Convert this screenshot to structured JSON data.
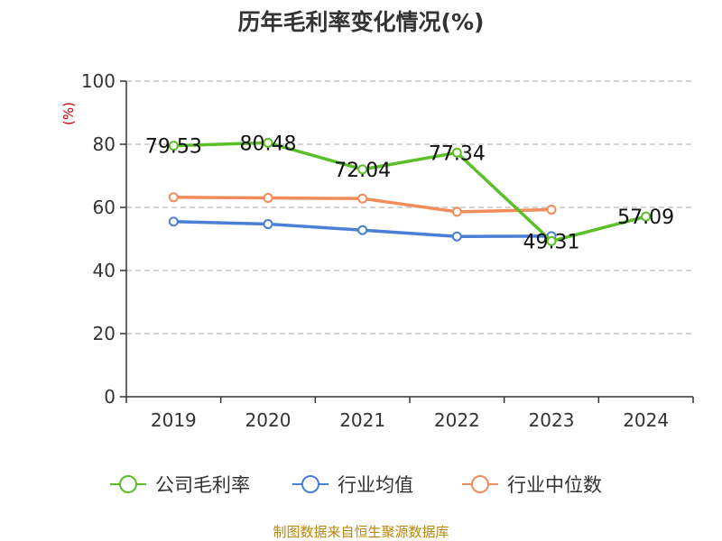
{
  "chart_data": {
    "type": "line",
    "title": "历年毛利率变化情况(%)",
    "ylabel": "(%)",
    "ylim": [
      0,
      100
    ],
    "y_ticks": [
      "0",
      "20",
      "40",
      "60",
      "80",
      "100"
    ],
    "categories": [
      "2019",
      "2020",
      "2021",
      "2022",
      "2023",
      "2024"
    ],
    "series": [
      {
        "name": "公司毛利率",
        "color": "#5cbf2a",
        "values": [
          79.53,
          80.48,
          72.04,
          77.34,
          49.31,
          57.09
        ],
        "labels": [
          "79.53",
          "80.48",
          "72.04",
          "77.34",
          "49.31",
          "57.09"
        ]
      },
      {
        "name": "行业均值",
        "color": "#4a7fd6",
        "values": [
          55.5,
          54.7,
          52.8,
          50.8,
          50.9,
          null
        ]
      },
      {
        "name": "行业中位数",
        "color": "#f28c5a",
        "values": [
          63.2,
          63.0,
          62.8,
          58.6,
          59.3,
          null
        ]
      }
    ],
    "grid": true,
    "legend_position": "bottom"
  },
  "source": "制图数据来自恒生聚源数据库"
}
